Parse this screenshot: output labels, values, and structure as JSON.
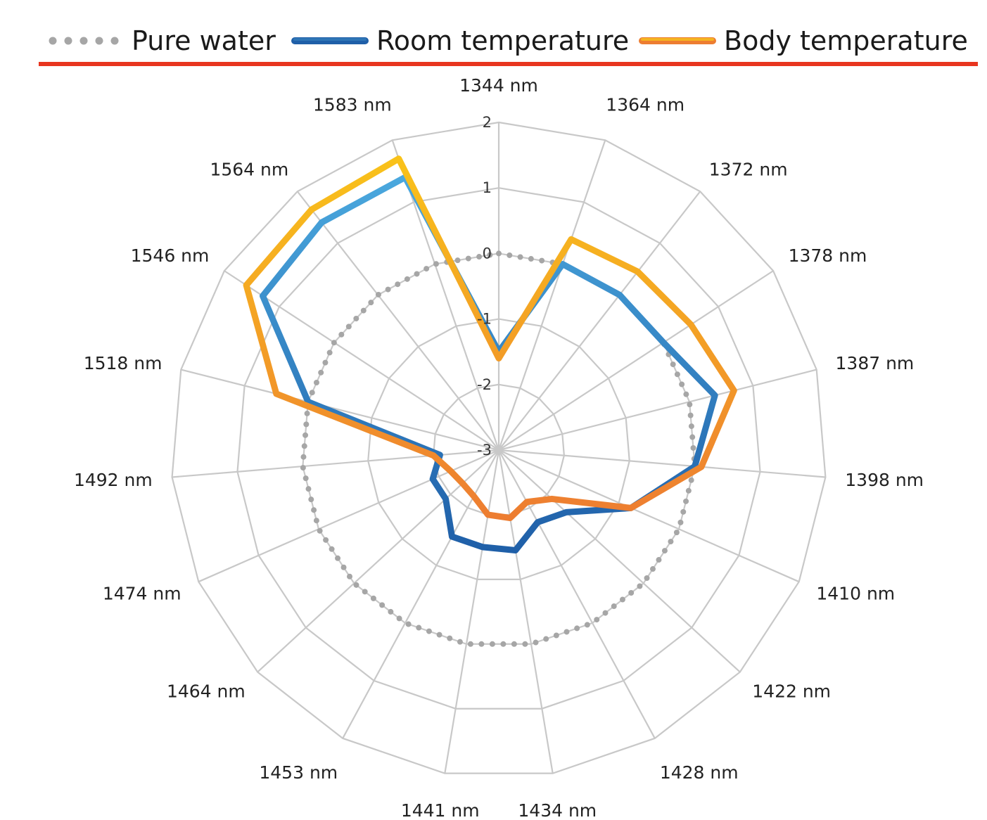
{
  "chart_data": {
    "type": "radar",
    "categories": [
      "1344 nm",
      "1364 nm",
      "1372 nm",
      "1378 nm",
      "1387 nm",
      "1398 nm",
      "1410 nm",
      "1422 nm",
      "1428 nm",
      "1434 nm",
      "1441 nm",
      "1453 nm",
      "1464 nm",
      "1474 nm",
      "1492 nm",
      "1518 nm",
      "1546 nm",
      "1564 nm",
      "1583 nm"
    ],
    "rlim": [
      -3,
      2
    ],
    "ticks": [
      "-3",
      "-2",
      "-1",
      "0",
      "1",
      "2"
    ],
    "grid": true,
    "legend_position": "top",
    "series": [
      {
        "name": "Pure water",
        "style": "dotted",
        "color": "#a6a6a6",
        "values": [
          0,
          0,
          0,
          0,
          0,
          0,
          0,
          0,
          0,
          0,
          0,
          0,
          0,
          0,
          0,
          0,
          0,
          0,
          0
        ]
      },
      {
        "name": "Room temperature",
        "style": "solid",
        "color": "#2e75b6",
        "color_alt": "#1f5fa8",
        "values": [
          -1.5,
          0.0,
          0.0,
          0.0,
          0.4,
          0.0,
          -0.8,
          -1.6,
          -1.75,
          -1.45,
          -1.5,
          -1.5,
          -1.9,
          -1.9,
          -2.1,
          0.0,
          1.3,
          1.4,
          1.4
        ]
      },
      {
        "name": "Body temperature",
        "style": "solid",
        "color": "#f5b321",
        "color_alt": "#ed7d31",
        "values": [
          -1.6,
          0.4,
          0.45,
          0.5,
          0.7,
          0.1,
          -0.8,
          -1.9,
          -2.1,
          -1.95,
          -2.0,
          -2.2,
          -2.25,
          -2.2,
          -2.0,
          0.5,
          1.6,
          1.65,
          1.7
        ]
      }
    ]
  }
}
